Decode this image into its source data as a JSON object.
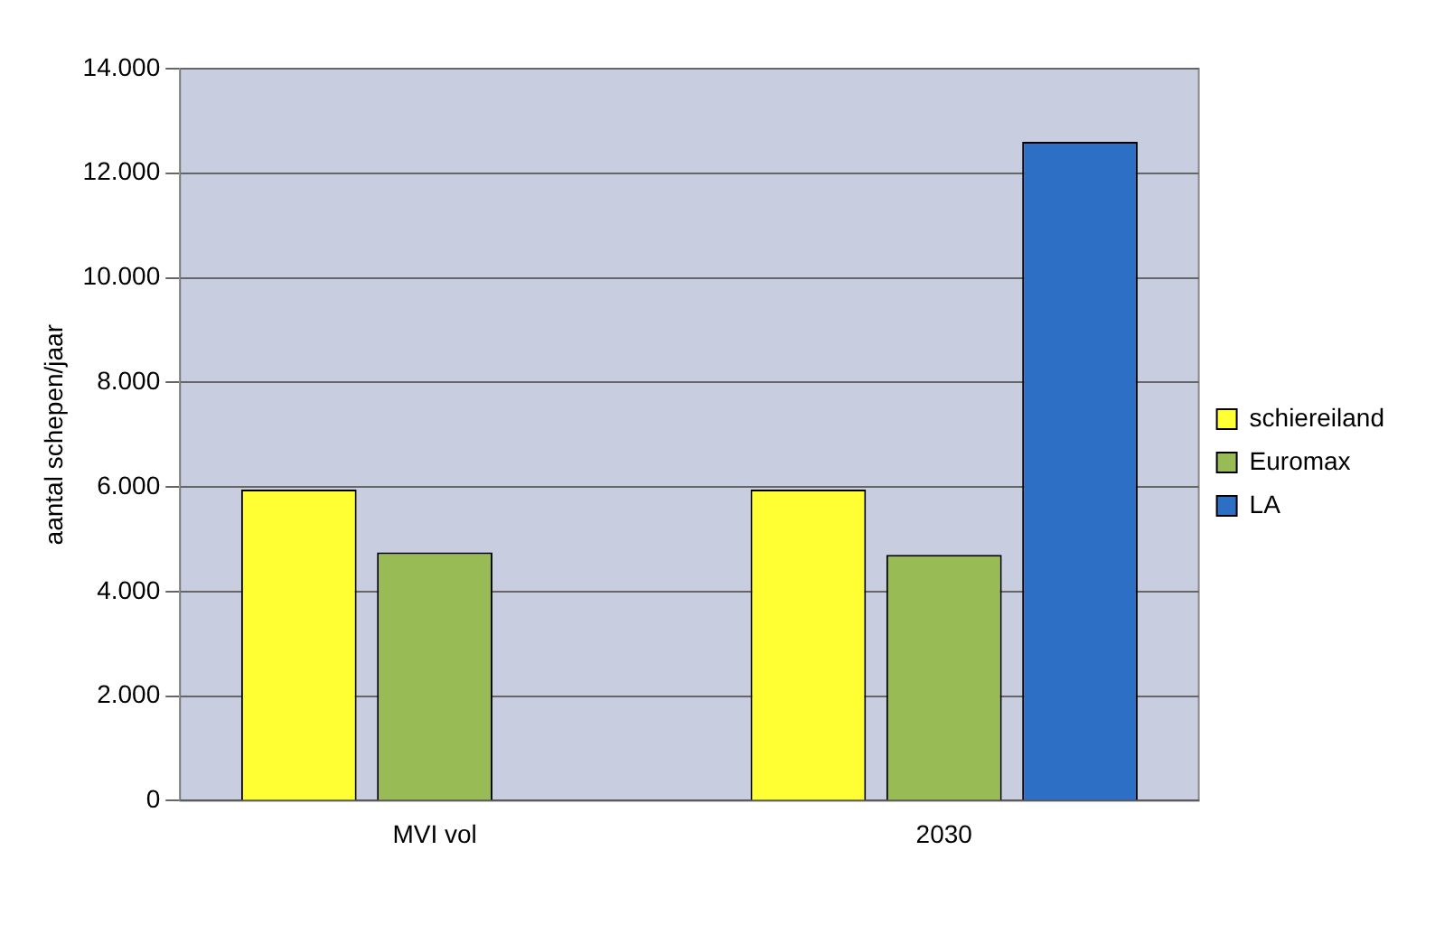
{
  "chart_data": {
    "type": "bar",
    "ylabel": "aantal schepen/jaar",
    "categories": [
      "MVI vol",
      "2030"
    ],
    "series": [
      {
        "name": "schiereiland",
        "color": "#ffff33",
        "values": [
          5950,
          5950
        ]
      },
      {
        "name": "Euromax",
        "color": "#99bb55",
        "values": [
          4750,
          4700
        ]
      },
      {
        "name": "LA",
        "color": "#2e6fc6",
        "values": [
          null,
          12600
        ]
      }
    ],
    "ylim": [
      0,
      14000
    ],
    "yticks": [
      {
        "value": 0,
        "label": "0"
      },
      {
        "value": 2000,
        "label": "2.000"
      },
      {
        "value": 4000,
        "label": "4.000"
      },
      {
        "value": 6000,
        "label": "6.000"
      },
      {
        "value": 8000,
        "label": "8.000"
      },
      {
        "value": 10000,
        "label": "10.000"
      },
      {
        "value": 12000,
        "label": "12.000"
      },
      {
        "value": 14000,
        "label": "14.000"
      }
    ],
    "grid": "y",
    "legend": "right"
  }
}
